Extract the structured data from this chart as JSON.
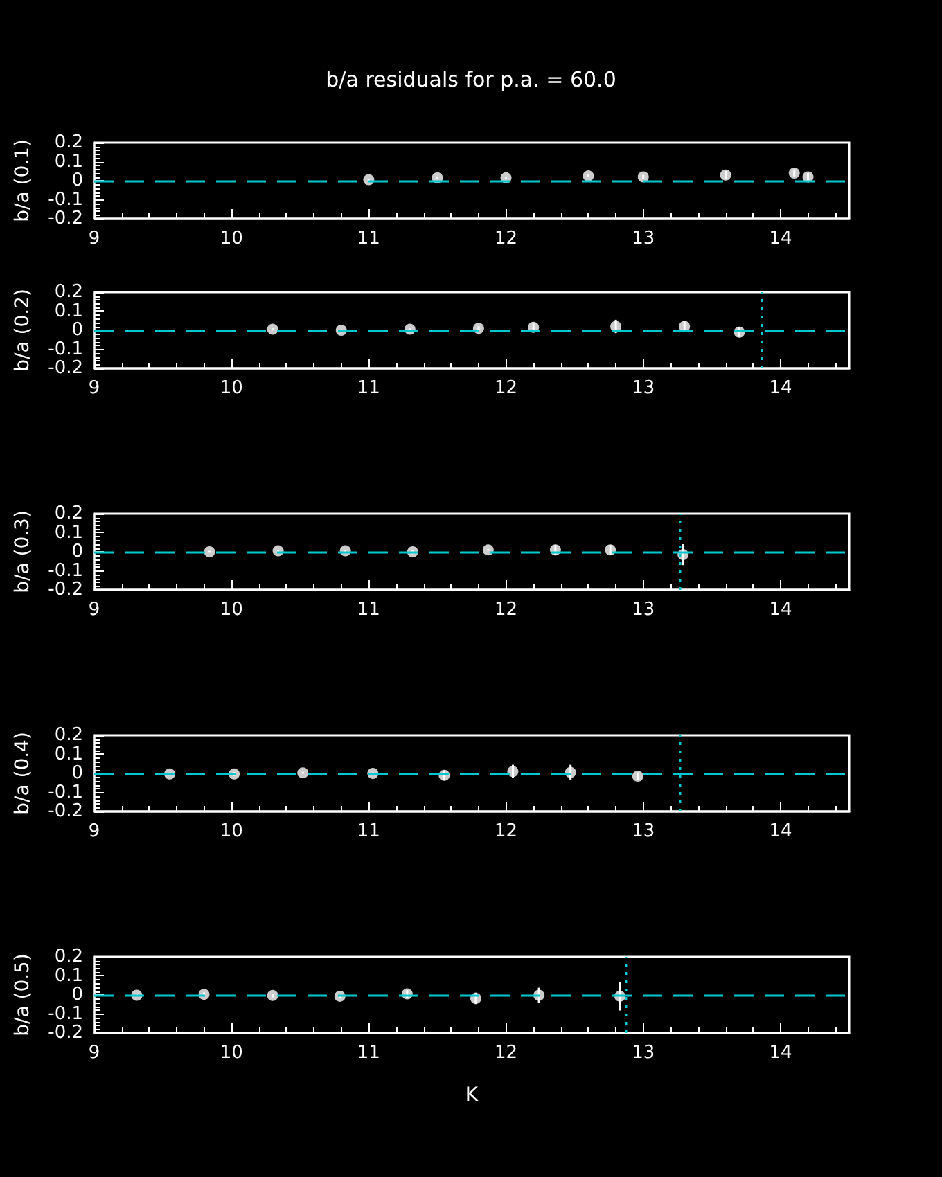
{
  "chart_data": [
    {
      "type": "scatter",
      "title": "b/a residuals for p.a. = 60.0",
      "ylabel": "b/a (0.1)",
      "color": "#ffffff",
      "marker": "circle",
      "x": [
        11.0,
        11.5,
        12.0,
        12.6,
        13.0,
        13.6,
        14.1,
        14.2
      ],
      "values": [
        0.005,
        0.015,
        0.015,
        0.025,
        0.02,
        0.03,
        0.04,
        0.02
      ],
      "errors": [
        0.005,
        0.007,
        0.007,
        0.007,
        0.01,
        0.02,
        0.02,
        0.02
      ],
      "xlim": [
        9,
        14.5
      ],
      "xticks": [
        9,
        10,
        11,
        12,
        13,
        14
      ],
      "ylim": [
        -0.2,
        0.2
      ],
      "yticks": [
        -0.2,
        -0.1,
        0,
        0.1,
        0.2
      ],
      "ref_lines": [
        {
          "axis": "y",
          "value": 0,
          "color": "#00c8d0",
          "line_style": "dashed"
        }
      ]
    },
    {
      "type": "scatter",
      "ylabel": "b/a (0.2)",
      "color": "#ffffff",
      "marker": "circle",
      "x": [
        10.3,
        10.8,
        11.3,
        11.8,
        12.2,
        12.8,
        13.3,
        13.7
      ],
      "values": [
        0.005,
        0.0,
        0.005,
        0.01,
        0.015,
        0.02,
        0.02,
        -0.01
      ],
      "errors": [
        0.005,
        0.005,
        0.005,
        0.01,
        0.02,
        0.035,
        0.03,
        0.025
      ],
      "xlim": [
        9,
        14.5
      ],
      "xticks": [
        9,
        10,
        11,
        12,
        13,
        14
      ],
      "ylim": [
        -0.2,
        0.2
      ],
      "yticks": [
        -0.2,
        -0.1,
        0,
        0.1,
        0.2
      ],
      "ref_lines": [
        {
          "axis": "y",
          "value": 0,
          "color": "#00c8d0",
          "line_style": "dashed"
        },
        {
          "axis": "x",
          "value": 13.86,
          "color": "#00c8d0",
          "line_style": "dotted"
        }
      ]
    },
    {
      "type": "scatter",
      "ylabel": "b/a (0.3)",
      "color": "#ffffff",
      "marker": "circle",
      "x": [
        9.84,
        10.34,
        10.83,
        11.32,
        11.87,
        12.36,
        12.76,
        13.29
      ],
      "values": [
        0.0,
        0.005,
        0.005,
        0.0,
        0.01,
        0.01,
        0.01,
        -0.015
      ],
      "errors": [
        0.005,
        0.005,
        0.005,
        0.01,
        0.005,
        0.025,
        0.025,
        0.055
      ],
      "xlim": [
        9,
        14.5
      ],
      "xticks": [
        9,
        10,
        11,
        12,
        13,
        14
      ],
      "ylim": [
        -0.2,
        0.2
      ],
      "yticks": [
        -0.2,
        -0.1,
        0,
        0.1,
        0.2
      ],
      "ref_lines": [
        {
          "axis": "y",
          "value": 0,
          "color": "#00c8d0",
          "line_style": "dashed"
        },
        {
          "axis": "x",
          "value": 13.27,
          "color": "#00c8d0",
          "line_style": "dotted"
        }
      ]
    },
    {
      "type": "scatter",
      "ylabel": "b/a (0.4)",
      "color": "#ffffff",
      "marker": "circle",
      "x": [
        9.55,
        10.02,
        10.52,
        11.03,
        11.55,
        12.05,
        12.47,
        12.96
      ],
      "values": [
        -0.003,
        -0.003,
        0.003,
        0.0,
        -0.01,
        0.01,
        0.005,
        -0.015
      ],
      "errors": [
        0.005,
        0.01,
        0.005,
        0.005,
        0.025,
        0.035,
        0.04,
        0.02
      ],
      "xlim": [
        9,
        14.5
      ],
      "xticks": [
        9,
        10,
        11,
        12,
        13,
        14
      ],
      "ylim": [
        -0.2,
        0.2
      ],
      "yticks": [
        -0.2,
        -0.1,
        0,
        0.1,
        0.2
      ],
      "ref_lines": [
        {
          "axis": "y",
          "value": 0,
          "color": "#00c8d0",
          "line_style": "dashed"
        },
        {
          "axis": "x",
          "value": 13.27,
          "color": "#00c8d0",
          "line_style": "dotted"
        }
      ]
    },
    {
      "type": "scatter",
      "xlabel": "K",
      "ylabel": "b/a (0.5)",
      "color": "#ffffff",
      "marker": "circle",
      "x": [
        9.31,
        9.8,
        10.3,
        10.79,
        11.28,
        11.78,
        12.24,
        12.83
      ],
      "values": [
        -0.002,
        0.003,
        -0.003,
        -0.007,
        0.005,
        -0.018,
        -0.002,
        -0.007
      ],
      "errors": [
        0.005,
        0.01,
        0.01,
        0.007,
        0.02,
        0.03,
        0.04,
        0.075
      ],
      "xlim": [
        9,
        14.5
      ],
      "xticks": [
        9,
        10,
        11,
        12,
        13,
        14
      ],
      "ylim": [
        -0.2,
        0.2
      ],
      "yticks": [
        -0.2,
        -0.1,
        0,
        0.1,
        0.2
      ],
      "ref_lines": [
        {
          "axis": "y",
          "value": 0,
          "color": "#00c8d0",
          "line_style": "dashed"
        },
        {
          "axis": "x",
          "value": 12.87,
          "color": "#00c8d0",
          "line_style": "dotted"
        }
      ]
    }
  ]
}
